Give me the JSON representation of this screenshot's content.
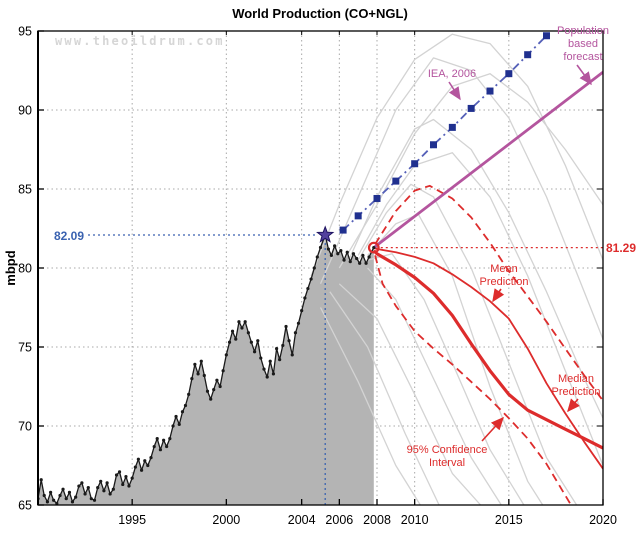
{
  "title": "World Production (CO+NGL)",
  "watermark": "www.theoildrum.com",
  "annotations": {
    "peak_value": "82.09",
    "last_value": "81.29",
    "iea_label": "IEA, 2006",
    "population_label": [
      "Population",
      "based",
      "forecast"
    ],
    "mean_label": [
      "Mean",
      "Prediction"
    ],
    "median_label": [
      "Median",
      "Prediction"
    ],
    "ci_label": [
      "95% Confidence",
      "Interval"
    ]
  },
  "colors": {
    "historical": "#1a1a1a",
    "fill": "#b4b4b4",
    "scenario": "#d3d3d3",
    "iea_line": "#5560b8",
    "iea_marker": "#20308f",
    "population": "#b4559e",
    "prediction": "#dd2c2c",
    "peak_annotation": "#3a62b0",
    "grid": "#a8a8a8",
    "star_fill": "#53419e",
    "star_edge": "#1e1460"
  },
  "chart_data": {
    "type": "line",
    "title": "World Production (CO+NGL)",
    "ylabel": "mbpd",
    "xlim": [
      1990,
      2020
    ],
    "ylim": [
      65,
      95
    ],
    "x_ticks": [
      1995,
      2000,
      2004,
      2006,
      2008,
      2010,
      2015,
      2020
    ],
    "y_ticks": [
      65,
      70,
      75,
      80,
      85,
      90,
      95
    ],
    "grid": "dotted",
    "peak_point": {
      "x": 2005.25,
      "y": 82.09
    },
    "last_point": {
      "x": 2007.83,
      "y": 81.29
    },
    "historical": {
      "name": "World production (CO+NGL), monthly",
      "points": [
        [
          1990.0,
          65.4
        ],
        [
          1990.17,
          66.6
        ],
        [
          1990.33,
          65.6
        ],
        [
          1990.5,
          65.2
        ],
        [
          1990.67,
          65.8
        ],
        [
          1990.83,
          65.3
        ],
        [
          1991.0,
          65.1
        ],
        [
          1991.17,
          65.6
        ],
        [
          1991.33,
          66.0
        ],
        [
          1991.5,
          65.4
        ],
        [
          1991.67,
          65.8
        ],
        [
          1991.83,
          65.2
        ],
        [
          1992.0,
          65.5
        ],
        [
          1992.17,
          66.2
        ],
        [
          1992.33,
          66.4
        ],
        [
          1992.5,
          65.7
        ],
        [
          1992.67,
          66.1
        ],
        [
          1992.83,
          65.4
        ],
        [
          1993.0,
          65.3
        ],
        [
          1993.17,
          66.1
        ],
        [
          1993.33,
          66.5
        ],
        [
          1993.5,
          65.9
        ],
        [
          1993.67,
          66.4
        ],
        [
          1993.83,
          65.7
        ],
        [
          1994.0,
          66.0
        ],
        [
          1994.17,
          66.9
        ],
        [
          1994.33,
          67.1
        ],
        [
          1994.5,
          66.3
        ],
        [
          1994.67,
          66.8
        ],
        [
          1994.83,
          66.2
        ],
        [
          1995.0,
          66.7
        ],
        [
          1995.17,
          67.4
        ],
        [
          1995.33,
          67.9
        ],
        [
          1995.5,
          67.2
        ],
        [
          1995.67,
          67.8
        ],
        [
          1995.83,
          67.5
        ],
        [
          1996.0,
          68.0
        ],
        [
          1996.17,
          68.7
        ],
        [
          1996.33,
          69.2
        ],
        [
          1996.5,
          68.5
        ],
        [
          1996.67,
          69.1
        ],
        [
          1996.83,
          68.7
        ],
        [
          1997.0,
          69.2
        ],
        [
          1997.17,
          70.0
        ],
        [
          1997.33,
          70.6
        ],
        [
          1997.5,
          70.1
        ],
        [
          1997.67,
          70.9
        ],
        [
          1997.83,
          71.3
        ],
        [
          1998.0,
          72.0
        ],
        [
          1998.17,
          73.0
        ],
        [
          1998.33,
          73.9
        ],
        [
          1998.5,
          73.3
        ],
        [
          1998.67,
          74.1
        ],
        [
          1998.83,
          73.2
        ],
        [
          1999.0,
          72.2
        ],
        [
          1999.17,
          71.7
        ],
        [
          1999.33,
          72.3
        ],
        [
          1999.5,
          72.9
        ],
        [
          1999.67,
          72.5
        ],
        [
          1999.83,
          73.5
        ],
        [
          2000.0,
          74.5
        ],
        [
          2000.17,
          75.3
        ],
        [
          2000.33,
          76.0
        ],
        [
          2000.5,
          75.5
        ],
        [
          2000.67,
          76.6
        ],
        [
          2000.83,
          76.2
        ],
        [
          2001.0,
          76.6
        ],
        [
          2001.17,
          75.9
        ],
        [
          2001.33,
          75.3
        ],
        [
          2001.5,
          74.7
        ],
        [
          2001.67,
          75.4
        ],
        [
          2001.83,
          74.3
        ],
        [
          2002.0,
          73.6
        ],
        [
          2002.17,
          73.1
        ],
        [
          2002.33,
          74.1
        ],
        [
          2002.5,
          73.3
        ],
        [
          2002.67,
          74.9
        ],
        [
          2002.83,
          74.2
        ],
        [
          2003.0,
          75.1
        ],
        [
          2003.17,
          76.3
        ],
        [
          2003.33,
          75.4
        ],
        [
          2003.5,
          74.5
        ],
        [
          2003.67,
          75.9
        ],
        [
          2003.83,
          76.5
        ],
        [
          2004.0,
          77.3
        ],
        [
          2004.17,
          78.1
        ],
        [
          2004.33,
          78.7
        ],
        [
          2004.5,
          79.3
        ],
        [
          2004.67,
          80.0
        ],
        [
          2004.83,
          80.7
        ],
        [
          2005.0,
          81.3
        ],
        [
          2005.25,
          82.09
        ],
        [
          2005.42,
          81.2
        ],
        [
          2005.58,
          80.8
        ],
        [
          2005.75,
          81.4
        ],
        [
          2005.92,
          80.9
        ],
        [
          2006.08,
          81.1
        ],
        [
          2006.25,
          80.5
        ],
        [
          2006.42,
          81.0
        ],
        [
          2006.58,
          80.4
        ],
        [
          2006.75,
          80.9
        ],
        [
          2006.92,
          80.6
        ],
        [
          2007.08,
          80.3
        ],
        [
          2007.25,
          80.8
        ],
        [
          2007.42,
          80.3
        ],
        [
          2007.58,
          80.7
        ],
        [
          2007.83,
          81.29
        ]
      ]
    },
    "iea_2006": {
      "name": "IEA, 2006 forecast",
      "points": [
        [
          2006.2,
          82.4
        ],
        [
          2007,
          83.3
        ],
        [
          2008,
          84.4
        ],
        [
          2009,
          85.5
        ],
        [
          2010,
          86.6
        ],
        [
          2011,
          87.8
        ],
        [
          2012,
          88.9
        ],
        [
          2013,
          90.1
        ],
        [
          2014,
          91.2
        ],
        [
          2015,
          92.3
        ],
        [
          2016,
          93.5
        ],
        [
          2017,
          94.7
        ]
      ]
    },
    "population_forecast": {
      "name": "Population based forecast",
      "points": [
        [
          2007.83,
          81.29
        ],
        [
          2020,
          92.4
        ]
      ]
    },
    "mean_prediction": {
      "name": "Mean Prediction",
      "points": [
        [
          2007.83,
          81.29
        ],
        [
          2008,
          81.2
        ],
        [
          2009,
          81.0
        ],
        [
          2010,
          80.7
        ],
        [
          2011,
          80.3
        ],
        [
          2012,
          79.6
        ],
        [
          2013,
          78.8
        ],
        [
          2014,
          77.9
        ],
        [
          2015,
          76.8
        ],
        [
          2016,
          74.9
        ],
        [
          2017,
          72.7
        ],
        [
          2018,
          70.8
        ],
        [
          2019,
          69.0
        ],
        [
          2020,
          67.3
        ]
      ]
    },
    "median_prediction": {
      "name": "Median Prediction",
      "points": [
        [
          2007.83,
          81.1
        ],
        [
          2008,
          80.9
        ],
        [
          2009,
          80.2
        ],
        [
          2010,
          79.4
        ],
        [
          2011,
          78.4
        ],
        [
          2012,
          77.0
        ],
        [
          2013,
          75.2
        ],
        [
          2014,
          73.5
        ],
        [
          2015,
          72.0
        ],
        [
          2016,
          71.0
        ],
        [
          2017,
          70.4
        ],
        [
          2018,
          69.8
        ],
        [
          2019,
          69.2
        ],
        [
          2020,
          68.6
        ]
      ]
    },
    "ci_upper": {
      "name": "95% Confidence Interval (upper)",
      "points": [
        [
          2007.9,
          81.5
        ],
        [
          2009,
          83.6
        ],
        [
          2010,
          84.9
        ],
        [
          2010.8,
          85.2
        ],
        [
          2012,
          84.4
        ],
        [
          2013,
          83.2
        ],
        [
          2014,
          81.6
        ],
        [
          2015,
          79.8
        ],
        [
          2016,
          78.2
        ],
        [
          2017,
          76.6
        ],
        [
          2018,
          74.9
        ],
        [
          2019,
          73.2
        ],
        [
          2020,
          71.6
        ]
      ]
    },
    "ci_lower": {
      "name": "95% Confidence Interval (lower)",
      "points": [
        [
          2007.9,
          80.8
        ],
        [
          2008.3,
          79.0
        ],
        [
          2009,
          77.6
        ],
        [
          2010,
          76.0
        ],
        [
          2011,
          74.9
        ],
        [
          2012,
          73.9
        ],
        [
          2013,
          72.8
        ],
        [
          2014,
          71.7
        ],
        [
          2015,
          70.5
        ],
        [
          2016,
          69.2
        ],
        [
          2017,
          67.6
        ],
        [
          2018.3,
          65.0
        ]
      ]
    },
    "scenarios": [
      {
        "points": [
          [
            2004.5,
            79.5
          ],
          [
            2006,
            84
          ],
          [
            2008,
            89.5
          ],
          [
            2010,
            93.2
          ],
          [
            2012,
            94.8
          ],
          [
            2014,
            94.2
          ],
          [
            2016,
            91.5
          ],
          [
            2018,
            86.5
          ],
          [
            2020,
            80.5
          ]
        ]
      },
      {
        "points": [
          [
            2005,
            79
          ],
          [
            2007,
            84.5
          ],
          [
            2009,
            90
          ],
          [
            2011,
            93.3
          ],
          [
            2013,
            92.5
          ],
          [
            2015,
            89.5
          ],
          [
            2017,
            84.5
          ],
          [
            2019,
            78.5
          ],
          [
            2020,
            75.5
          ]
        ]
      },
      {
        "points": [
          [
            2006,
            80
          ],
          [
            2008,
            84
          ],
          [
            2010,
            88.5
          ],
          [
            2012,
            91.5
          ],
          [
            2014,
            92.3
          ],
          [
            2016,
            90.5
          ],
          [
            2018,
            87.5
          ],
          [
            2020,
            84
          ]
        ]
      },
      {
        "points": [
          [
            2006.5,
            80.5
          ],
          [
            2008,
            84.5
          ],
          [
            2010,
            88.8
          ],
          [
            2011,
            89.4
          ],
          [
            2013,
            87.5
          ],
          [
            2015,
            83.5
          ],
          [
            2017,
            78.5
          ],
          [
            2019,
            73
          ],
          [
            2020,
            70.5
          ]
        ]
      },
      {
        "points": [
          [
            2007,
            80.8
          ],
          [
            2008.5,
            84
          ],
          [
            2010,
            86.5
          ],
          [
            2012,
            87.3
          ],
          [
            2014,
            84.5
          ],
          [
            2016,
            79.5
          ],
          [
            2018,
            73.5
          ],
          [
            2020,
            67.5
          ]
        ]
      },
      {
        "points": [
          [
            2007,
            80.5
          ],
          [
            2008.5,
            83.5
          ],
          [
            2009.8,
            85.3
          ],
          [
            2011,
            84.5
          ],
          [
            2013,
            80
          ],
          [
            2015,
            74
          ],
          [
            2017,
            68
          ],
          [
            2018.6,
            65
          ]
        ]
      },
      {
        "points": [
          [
            2007.5,
            80.8
          ],
          [
            2009,
            82.8
          ],
          [
            2010.2,
            83.4
          ],
          [
            2012,
            79.5
          ],
          [
            2014,
            72.5
          ],
          [
            2016,
            66.5
          ],
          [
            2016.8,
            65
          ]
        ]
      },
      {
        "points": [
          [
            2007.5,
            80.5
          ],
          [
            2008.8,
            80.9
          ],
          [
            2010.5,
            78
          ],
          [
            2012,
            74
          ],
          [
            2014,
            68.5
          ],
          [
            2015.8,
            65
          ]
        ]
      },
      {
        "points": [
          [
            2007.5,
            80
          ],
          [
            2009,
            78
          ],
          [
            2011,
            73
          ],
          [
            2013,
            68
          ],
          [
            2014.6,
            65
          ]
        ]
      },
      {
        "points": [
          [
            2006,
            79
          ],
          [
            2008,
            76.8
          ],
          [
            2010,
            72
          ],
          [
            2012,
            67
          ],
          [
            2013.5,
            65
          ]
        ]
      },
      {
        "points": [
          [
            2005.5,
            78.5
          ],
          [
            2007.5,
            75
          ],
          [
            2009.5,
            69.5
          ],
          [
            2011.3,
            65
          ]
        ]
      },
      {
        "points": [
          [
            2005,
            77.5
          ],
          [
            2007,
            72.8
          ],
          [
            2009,
            67.5
          ],
          [
            2010.3,
            65
          ]
        ]
      }
    ]
  }
}
